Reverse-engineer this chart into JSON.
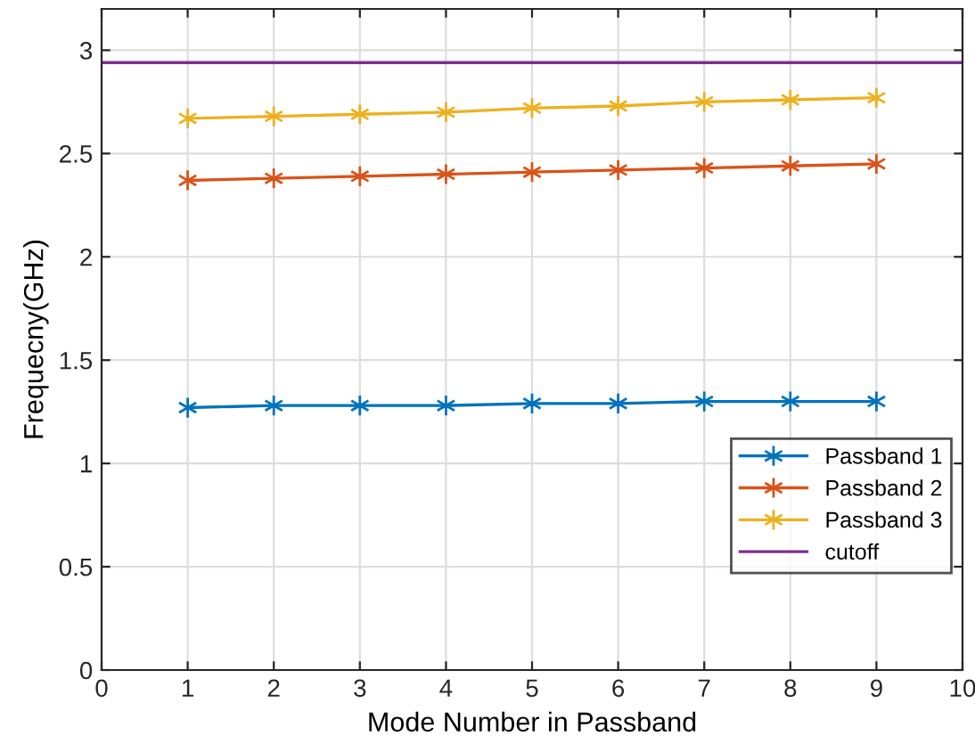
{
  "chart_data": {
    "type": "line",
    "xlabel": "Mode Number in Passband",
    "ylabel": "Frequecny(GHz)",
    "x": [
      1,
      2,
      3,
      4,
      5,
      6,
      7,
      8,
      9
    ],
    "series": [
      {
        "name": "Passband 1",
        "color": "#0072bd",
        "marker": "cross",
        "values": [
          1.27,
          1.28,
          1.28,
          1.28,
          1.29,
          1.29,
          1.3,
          1.3,
          1.3
        ]
      },
      {
        "name": "Passband 2",
        "color": "#d95319",
        "marker": "cross",
        "values": [
          2.37,
          2.38,
          2.39,
          2.4,
          2.41,
          2.42,
          2.43,
          2.44,
          2.45
        ]
      },
      {
        "name": "Passband 3",
        "color": "#edb120",
        "marker": "cross",
        "values": [
          2.67,
          2.68,
          2.69,
          2.7,
          2.72,
          2.73,
          2.75,
          2.76,
          2.77
        ]
      },
      {
        "name": "cutoff",
        "color": "#7e2f8e",
        "marker": "none",
        "x": [
          0,
          10
        ],
        "values": [
          2.94,
          2.94
        ]
      }
    ],
    "xlim": [
      0,
      10
    ],
    "xticks": [
      0,
      1,
      2,
      3,
      4,
      5,
      6,
      7,
      8,
      9,
      10
    ],
    "ylim": [
      0,
      3.2
    ],
    "yticks": [
      0,
      0.5,
      1,
      1.5,
      2,
      2.5,
      3
    ],
    "grid": true,
    "legend": "bottom right"
  }
}
